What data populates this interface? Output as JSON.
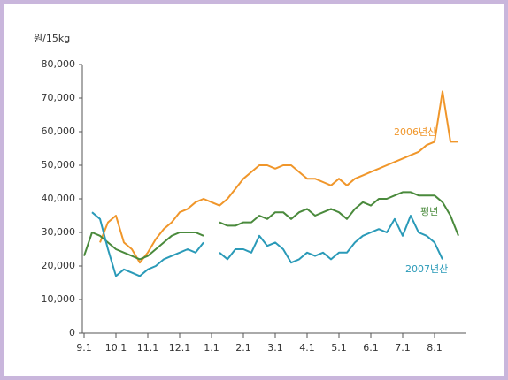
{
  "chart_data": {
    "type": "line",
    "y_unit": "원/15kg",
    "x": [
      0,
      0.25,
      0.5,
      0.75,
      1,
      1.25,
      1.5,
      1.75,
      2,
      2.25,
      2.5,
      2.75,
      3,
      3.25,
      3.5,
      3.75,
      4,
      4.25,
      4.5,
      4.75,
      5,
      5.25,
      5.5,
      5.75,
      6,
      6.25,
      6.5,
      6.75,
      7,
      7.25,
      7.5,
      7.75,
      8,
      8.25,
      8.5,
      8.75,
      9,
      9.25,
      9.5,
      9.75,
      10,
      10.25,
      10.5,
      10.75,
      11,
      11.25,
      11.5,
      11.75
    ],
    "xlim": [
      0,
      12
    ],
    "xticks": [
      {
        "value": 0,
        "label": "9.1"
      },
      {
        "value": 1,
        "label": "10.1"
      },
      {
        "value": 2,
        "label": "11.1"
      },
      {
        "value": 3,
        "label": "12.1"
      },
      {
        "value": 4,
        "label": "1.1"
      },
      {
        "value": 5,
        "label": "2.1"
      },
      {
        "value": 6,
        "label": "3.1"
      },
      {
        "value": 7,
        "label": "4.1"
      },
      {
        "value": 8,
        "label": "5.1"
      },
      {
        "value": 9,
        "label": "6.1"
      },
      {
        "value": 10,
        "label": "7.1"
      },
      {
        "value": 11,
        "label": "8.1"
      }
    ],
    "ylim": [
      0,
      80000
    ],
    "yticks": [
      0,
      {
        "value": 10000,
        "label": "10,000"
      },
      {
        "value": 20000,
        "label": "20,000"
      },
      {
        "value": 30000,
        "label": "30,000"
      },
      {
        "value": 40000,
        "label": "40,000"
      },
      {
        "value": 50000,
        "label": "50,000"
      },
      {
        "value": 60000,
        "label": "60,000"
      },
      {
        "value": 70000,
        "label": "70,000"
      },
      {
        "value": 80000,
        "label": "80,000"
      }
    ],
    "series": [
      {
        "name": "2006년산",
        "color": "#f0962a",
        "values": [
          null,
          null,
          27000,
          33000,
          35000,
          27000,
          25000,
          21000,
          24000,
          28000,
          31000,
          33000,
          36000,
          37000,
          39000,
          40000,
          39000,
          38000,
          40000,
          43000,
          46000,
          48000,
          50000,
          50000,
          49000,
          50000,
          50000,
          48000,
          46000,
          46000,
          45000,
          44000,
          46000,
          44000,
          46000,
          47000,
          48000,
          49000,
          50000,
          51000,
          52000,
          53000,
          54000,
          56000,
          57000,
          72000,
          57000,
          57000
        ]
      },
      {
        "name": "평년",
        "color": "#4a8a3c",
        "values": [
          23000,
          30000,
          29000,
          27000,
          25000,
          24000,
          23000,
          22000,
          23000,
          25000,
          27000,
          29000,
          30000,
          30000,
          30000,
          29000,
          null,
          33000,
          32000,
          32000,
          33000,
          33000,
          35000,
          34000,
          36000,
          36000,
          34000,
          36000,
          37000,
          35000,
          36000,
          37000,
          36000,
          34000,
          37000,
          39000,
          38000,
          40000,
          40000,
          41000,
          42000,
          42000,
          41000,
          41000,
          41000,
          39000,
          35000,
          29000
        ]
      },
      {
        "name": "2007년산",
        "color": "#2a9ab8",
        "values": [
          null,
          36000,
          34000,
          25000,
          17000,
          19000,
          18000,
          17000,
          19000,
          20000,
          22000,
          23000,
          24000,
          25000,
          24000,
          27000,
          null,
          24000,
          22000,
          25000,
          25000,
          24000,
          29000,
          26000,
          27000,
          25000,
          21000,
          22000,
          24000,
          23000,
          24000,
          22000,
          24000,
          24000,
          27000,
          29000,
          30000,
          31000,
          30000,
          34000,
          29000,
          35000,
          30000,
          29000,
          27000,
          22000,
          null,
          null
        ]
      }
    ]
  }
}
